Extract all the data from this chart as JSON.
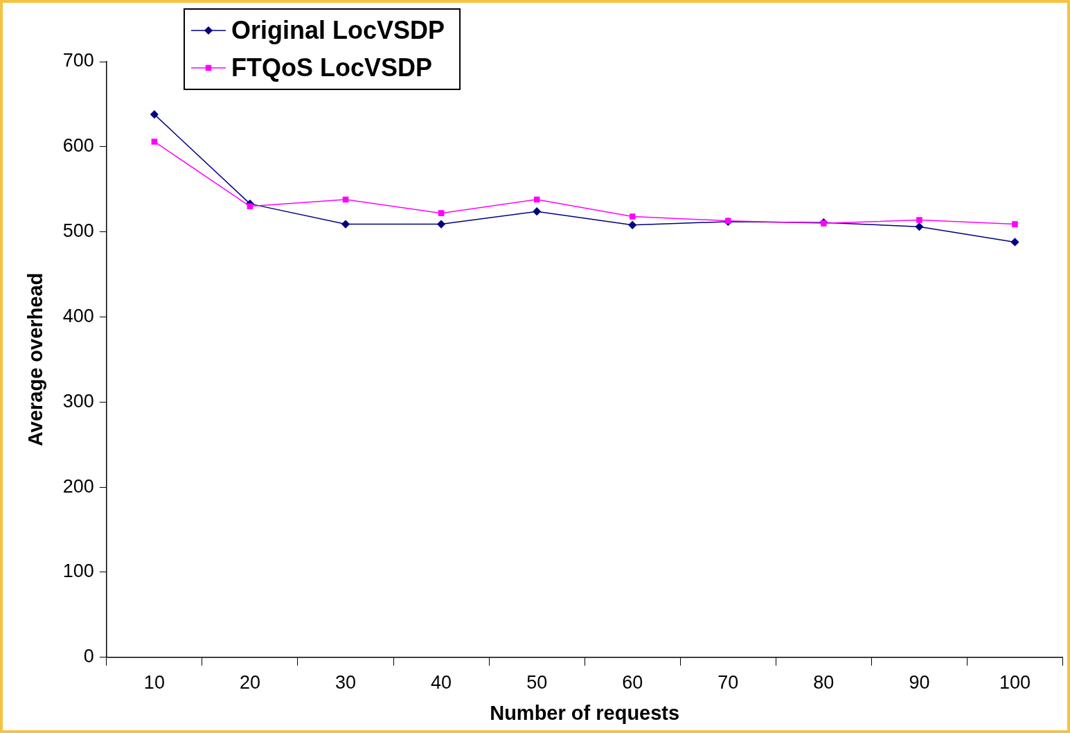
{
  "chart_data": {
    "type": "line",
    "xlabel": "Number of requests",
    "ylabel": "Average overhead",
    "categories": [
      "10",
      "20",
      "30",
      "40",
      "50",
      "60",
      "70",
      "80",
      "90",
      "100"
    ],
    "series": [
      {
        "name": "Original LocVSDP",
        "color": "#000080",
        "marker": "diamond",
        "values": [
          638,
          533,
          509,
          509,
          524,
          508,
          512,
          511,
          506,
          488
        ]
      },
      {
        "name": "FTQoS LocVSDP",
        "color": "#ff00ff",
        "marker": "square",
        "values": [
          606,
          530,
          538,
          522,
          538,
          518,
          513,
          510,
          514,
          509
        ]
      }
    ],
    "ylim": [
      0,
      700
    ],
    "yticks": [
      0,
      100,
      200,
      300,
      400,
      500,
      600,
      700
    ],
    "grid": false,
    "legend": "top left"
  }
}
